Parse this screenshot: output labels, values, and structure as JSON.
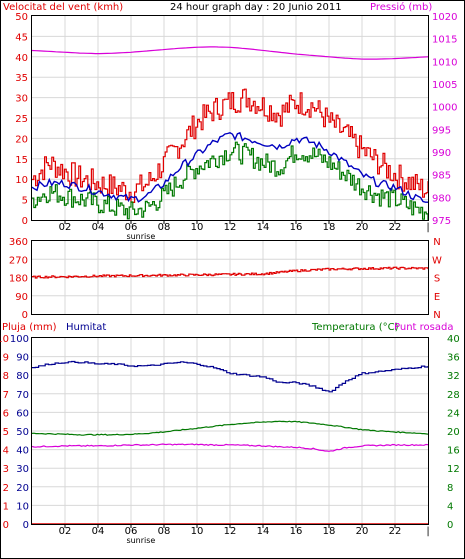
{
  "header": {
    "wind_label": "Velocitat del vent (kmh)",
    "title": "24 hour graph day : 20 Junio 2011",
    "pressure_label": "Pressió (mb)"
  },
  "colors": {
    "background": "#ffffff",
    "grid": "#d8d8d8",
    "frame": "#000000",
    "red": "#e00000",
    "blue": "#0000c0",
    "green": "#007800",
    "magenta": "#d800d8",
    "navy": "#000090"
  },
  "chart_data": [
    {
      "type": "line",
      "title": "24 hour graph day : 20 Junio 2011",
      "ylabel": "Velocitat del vent (kmh)",
      "y2label": "Pressió (mb)",
      "ylim": [
        0,
        50
      ],
      "y2lim": [
        975,
        1020
      ],
      "yticks": [
        "0",
        "5",
        "10",
        "15",
        "20",
        "25",
        "30",
        "35",
        "40",
        "45",
        "50"
      ],
      "y2ticks": [
        "975",
        "980",
        "985",
        "990",
        "995",
        "1000",
        "1005",
        "1010",
        "1015",
        "1020"
      ],
      "xticks": [
        "02",
        "04",
        "06",
        "08",
        "10",
        "12",
        "14",
        "16",
        "18",
        "20",
        "22"
      ],
      "sunrise_label": "sunrise",
      "grid": true,
      "x_hours": [
        0,
        1,
        2,
        3,
        4,
        5,
        6,
        7,
        8,
        9,
        10,
        11,
        12,
        13,
        14,
        15,
        16,
        17,
        18,
        19,
        20,
        21,
        22,
        23,
        24
      ],
      "series": [
        {
          "name": "Velocitat del vent (kmh)",
          "axis": "left",
          "step": true,
          "color_key": "red",
          "values": [
            10,
            14,
            12,
            10,
            9,
            8,
            7,
            9,
            14,
            19,
            24,
            27,
            29,
            30,
            28,
            26,
            29,
            28,
            24,
            21,
            17,
            14,
            11,
            9,
            7
          ]
        },
        {
          "axis": "left",
          "step": false,
          "color_key": "blue",
          "values": [
            8,
            9,
            9,
            8,
            7,
            6,
            5,
            6,
            9,
            13,
            16,
            19,
            21,
            20,
            19,
            18,
            20,
            19,
            17,
            14,
            11,
            9,
            8,
            6,
            4
          ]
        },
        {
          "axis": "left",
          "step": true,
          "color_key": "green",
          "values": [
            5,
            7,
            6,
            5,
            4,
            3,
            2,
            3,
            6,
            10,
            13,
            15,
            17,
            16,
            14,
            13,
            17,
            16,
            14,
            11,
            8,
            6,
            5,
            3,
            2
          ]
        },
        {
          "name": "Pressió (mb)",
          "axis": "right",
          "step": false,
          "color_key": "magenta",
          "values": [
            1012.4,
            1012.2,
            1012.0,
            1011.8,
            1011.7,
            1011.8,
            1012.0,
            1012.3,
            1012.6,
            1012.9,
            1013.1,
            1013.2,
            1013.1,
            1012.8,
            1012.4,
            1012.0,
            1011.6,
            1011.3,
            1011.0,
            1010.7,
            1010.5,
            1010.5,
            1010.6,
            1010.8,
            1011.0
          ]
        }
      ]
    },
    {
      "type": "line",
      "ylim": [
        0,
        360
      ],
      "yticks": [
        "0",
        "90",
        "180",
        "270",
        "360"
      ],
      "y2ticks": [
        "N",
        "E",
        "S",
        "W",
        "N"
      ],
      "grid": true,
      "x_hours": [
        0,
        2,
        4,
        6,
        8,
        10,
        12,
        14,
        16,
        18,
        20,
        22,
        24
      ],
      "series": [
        {
          "axis": "left",
          "color_key": "red",
          "values": [
            182,
            184,
            187,
            189,
            191,
            193,
            195,
            198,
            213,
            221,
            224,
            226,
            225
          ]
        }
      ]
    },
    {
      "type": "line",
      "left_labels": {
        "pluja": "Pluja (mm)",
        "humitat": "Humitat"
      },
      "right_labels": {
        "temperatura": "Temperatura (°C)",
        "punt_rosada": "Punt rosada"
      },
      "ylim_pluja": [
        0,
        10
      ],
      "ylim_humitat": [
        0,
        100
      ],
      "ylim_temp": [
        0,
        40
      ],
      "ticks_pluja": [
        "0",
        "1",
        "2",
        "3",
        "4",
        "5",
        "6",
        "7",
        "8",
        "9",
        "10"
      ],
      "ticks_humitat": [
        "0",
        "10",
        "20",
        "30",
        "40",
        "50",
        "60",
        "70",
        "80",
        "90",
        "100"
      ],
      "ticks_temp": [
        "0",
        "4",
        "8",
        "12",
        "16",
        "20",
        "24",
        "28",
        "32",
        "36",
        "40"
      ],
      "xticks": [
        "02",
        "04",
        "06",
        "08",
        "10",
        "12",
        "14",
        "16",
        "18",
        "20",
        "22"
      ],
      "sunrise_label": "sunrise",
      "grid": true,
      "x_hours": [
        0,
        1,
        2,
        3,
        4,
        5,
        6,
        7,
        8,
        9,
        10,
        11,
        12,
        13,
        14,
        15,
        16,
        17,
        18,
        19,
        20,
        21,
        22,
        23,
        24
      ],
      "series": [
        {
          "name": "Pluja (mm)",
          "axis": "pluja",
          "color_key": "red",
          "values": [
            0,
            0,
            0,
            0,
            0,
            0,
            0,
            0,
            0,
            0,
            0,
            0,
            0,
            0,
            0,
            0,
            0,
            0,
            0,
            0,
            0,
            0,
            0,
            0,
            0
          ]
        },
        {
          "name": "Humitat",
          "axis": "humitat",
          "color_key": "navy",
          "values": [
            84,
            86,
            87,
            87,
            86,
            86,
            85,
            85,
            86,
            87,
            86,
            84,
            81,
            80,
            79,
            76,
            76,
            74,
            71,
            77,
            81,
            82,
            83,
            84,
            85
          ]
        },
        {
          "name": "Temperatura (°C)",
          "axis": "temp",
          "color_key": "green",
          "values": [
            19.5,
            19.4,
            19.3,
            19.2,
            19.2,
            19.2,
            19.3,
            19.5,
            19.8,
            20.2,
            20.6,
            21.0,
            21.4,
            21.7,
            21.9,
            22.1,
            22.0,
            21.7,
            21.3,
            20.8,
            20.3,
            20.0,
            19.8,
            19.6,
            19.4
          ]
        },
        {
          "name": "Punt rosada",
          "axis": "temp",
          "color_key": "magenta",
          "values": [
            16.6,
            16.7,
            16.8,
            16.8,
            16.8,
            16.9,
            17.0,
            17.0,
            17.1,
            17.1,
            17.1,
            17.0,
            17.0,
            16.9,
            16.8,
            16.6,
            16.5,
            16.2,
            15.6,
            16.4,
            16.8,
            16.9,
            17.0,
            17.0,
            17.0
          ]
        }
      ]
    }
  ]
}
